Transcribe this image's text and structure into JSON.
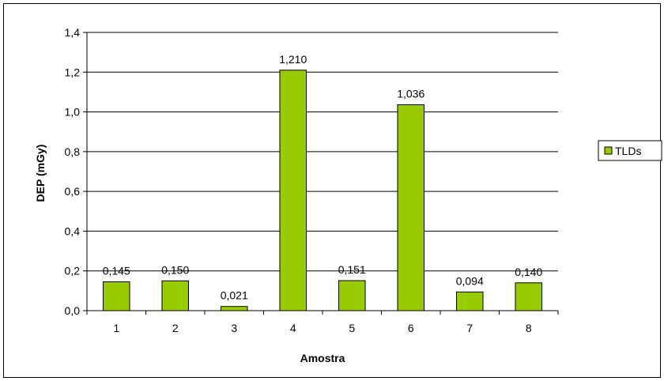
{
  "chart_data": {
    "type": "bar",
    "categories": [
      "1",
      "2",
      "3",
      "4",
      "5",
      "6",
      "7",
      "8"
    ],
    "series": [
      {
        "name": "TLDs",
        "values": [
          0.145,
          0.15,
          0.021,
          1.21,
          0.151,
          1.036,
          0.094,
          0.14
        ],
        "labels": [
          "0,145",
          "0,150",
          "0,021",
          "1,210",
          "0,151",
          "1,036",
          "0,094",
          "0,140"
        ],
        "color": "#99cc00"
      }
    ],
    "xlabel": "Amostra",
    "ylabel": "DEP (mGy)",
    "ylim": [
      0,
      1.4
    ],
    "yticks": [
      0,
      0.2,
      0.4,
      0.6,
      0.8,
      1.0,
      1.2,
      1.4
    ],
    "ytick_labels": [
      "0,0",
      "0,2",
      "0,4",
      "0,6",
      "0,8",
      "1,0",
      "1,2",
      "1,4"
    ],
    "grid": true,
    "legend_position": "right"
  }
}
